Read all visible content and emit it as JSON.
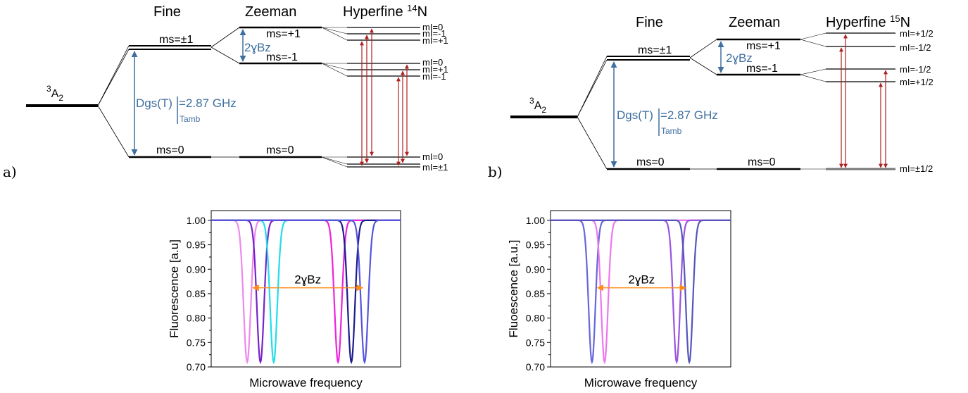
{
  "diagram_a": {
    "panel_letter": "a)",
    "col_fine": "Fine",
    "col_zeeman": "Zeeman",
    "col_hyperfine": "Hyperfine ",
    "hyperfine_isotope_sup": "14",
    "hyperfine_isotope": "N",
    "ground_state_sup": "3",
    "ground_state": "A",
    "ground_state_sub": "2",
    "fine_upper": "ms=±1",
    "fine_lower": "ms=0",
    "zeeman_plus": "ms=+1",
    "zeeman_minus": "ms=-1",
    "zeeman_zero": "ms=0",
    "zeeman_split": "2ɣBz",
    "dgs_label": "Dgs(T)",
    "dgs_value": "=2.87 GHz",
    "dgs_sub": "Tamb",
    "hf_plus": [
      "mI=0",
      "mI=-1",
      "mI=+1"
    ],
    "hf_minus": [
      "mI=0",
      "mI=+1",
      "mI=-1"
    ],
    "hf_zero": [
      "mI=0",
      "mI=±1"
    ]
  },
  "diagram_b": {
    "panel_letter": "b)",
    "col_fine": "Fine",
    "col_zeeman": "Zeeman",
    "col_hyperfine": "Hyperfine ",
    "hyperfine_isotope_sup": "15",
    "hyperfine_isotope": "N",
    "ground_state_sup": "3",
    "ground_state": "A",
    "ground_state_sub": "2",
    "fine_upper": "ms=±1",
    "fine_lower": "ms=0",
    "zeeman_plus": "ms=+1",
    "zeeman_minus": "ms=-1",
    "zeeman_zero": "ms=0",
    "zeeman_split": "2ɣBz",
    "dgs_label": "Dgs(T)",
    "dgs_value": "=2.87 GHz",
    "dgs_sub": "Tamb",
    "hf_plus": [
      "mI=+1/2",
      "mI=-1/2"
    ],
    "hf_minus": [
      "mI=-1/2",
      "mI=+1/2"
    ],
    "hf_zero": [
      "mI=±1/2"
    ]
  },
  "chart_data": [
    {
      "type": "line",
      "ylabel": "Fluorescence [a.u]",
      "xlabel": "Microwave frequency",
      "ylim": [
        0.7,
        1.02
      ],
      "yticks": [
        "1.00",
        "0.95",
        "0.90",
        "0.85",
        "0.80",
        "0.75",
        "0.70"
      ],
      "xlim": [
        0,
        100
      ],
      "annotation": "2ɣBz",
      "annotation_span": [
        22,
        80
      ],
      "annotation_y": 0.862,
      "dip_depth": 0.71,
      "dip_width": 1.9,
      "series": [
        {
          "color": "#ee88ee",
          "center": 19
        },
        {
          "color": "#7722cc",
          "center": 26
        },
        {
          "color": "#22dde8",
          "center": 33
        },
        {
          "color": "#ee22dd",
          "center": 67
        },
        {
          "color": "#1c1c8c",
          "center": 74
        },
        {
          "color": "#5555dd",
          "center": 81
        }
      ]
    },
    {
      "type": "line",
      "ylabel": "Fluoescence [a.u.]",
      "xlabel": "Microwave frequency",
      "ylim": [
        0.7,
        1.02
      ],
      "yticks": [
        "1.00",
        "0.95",
        "0.90",
        "0.85",
        "0.80",
        "0.75",
        "0.70"
      ],
      "xlim": [
        0,
        100
      ],
      "annotation": "2ɣBz",
      "annotation_span": [
        26,
        75
      ],
      "annotation_y": 0.862,
      "dip_depth": 0.71,
      "dip_width": 1.9,
      "series": [
        {
          "color": "#6666dd",
          "center": 23
        },
        {
          "color": "#ee77ee",
          "center": 30
        },
        {
          "color": "#9955dd",
          "center": 70
        },
        {
          "color": "#5555bb",
          "center": 77
        }
      ]
    }
  ]
}
